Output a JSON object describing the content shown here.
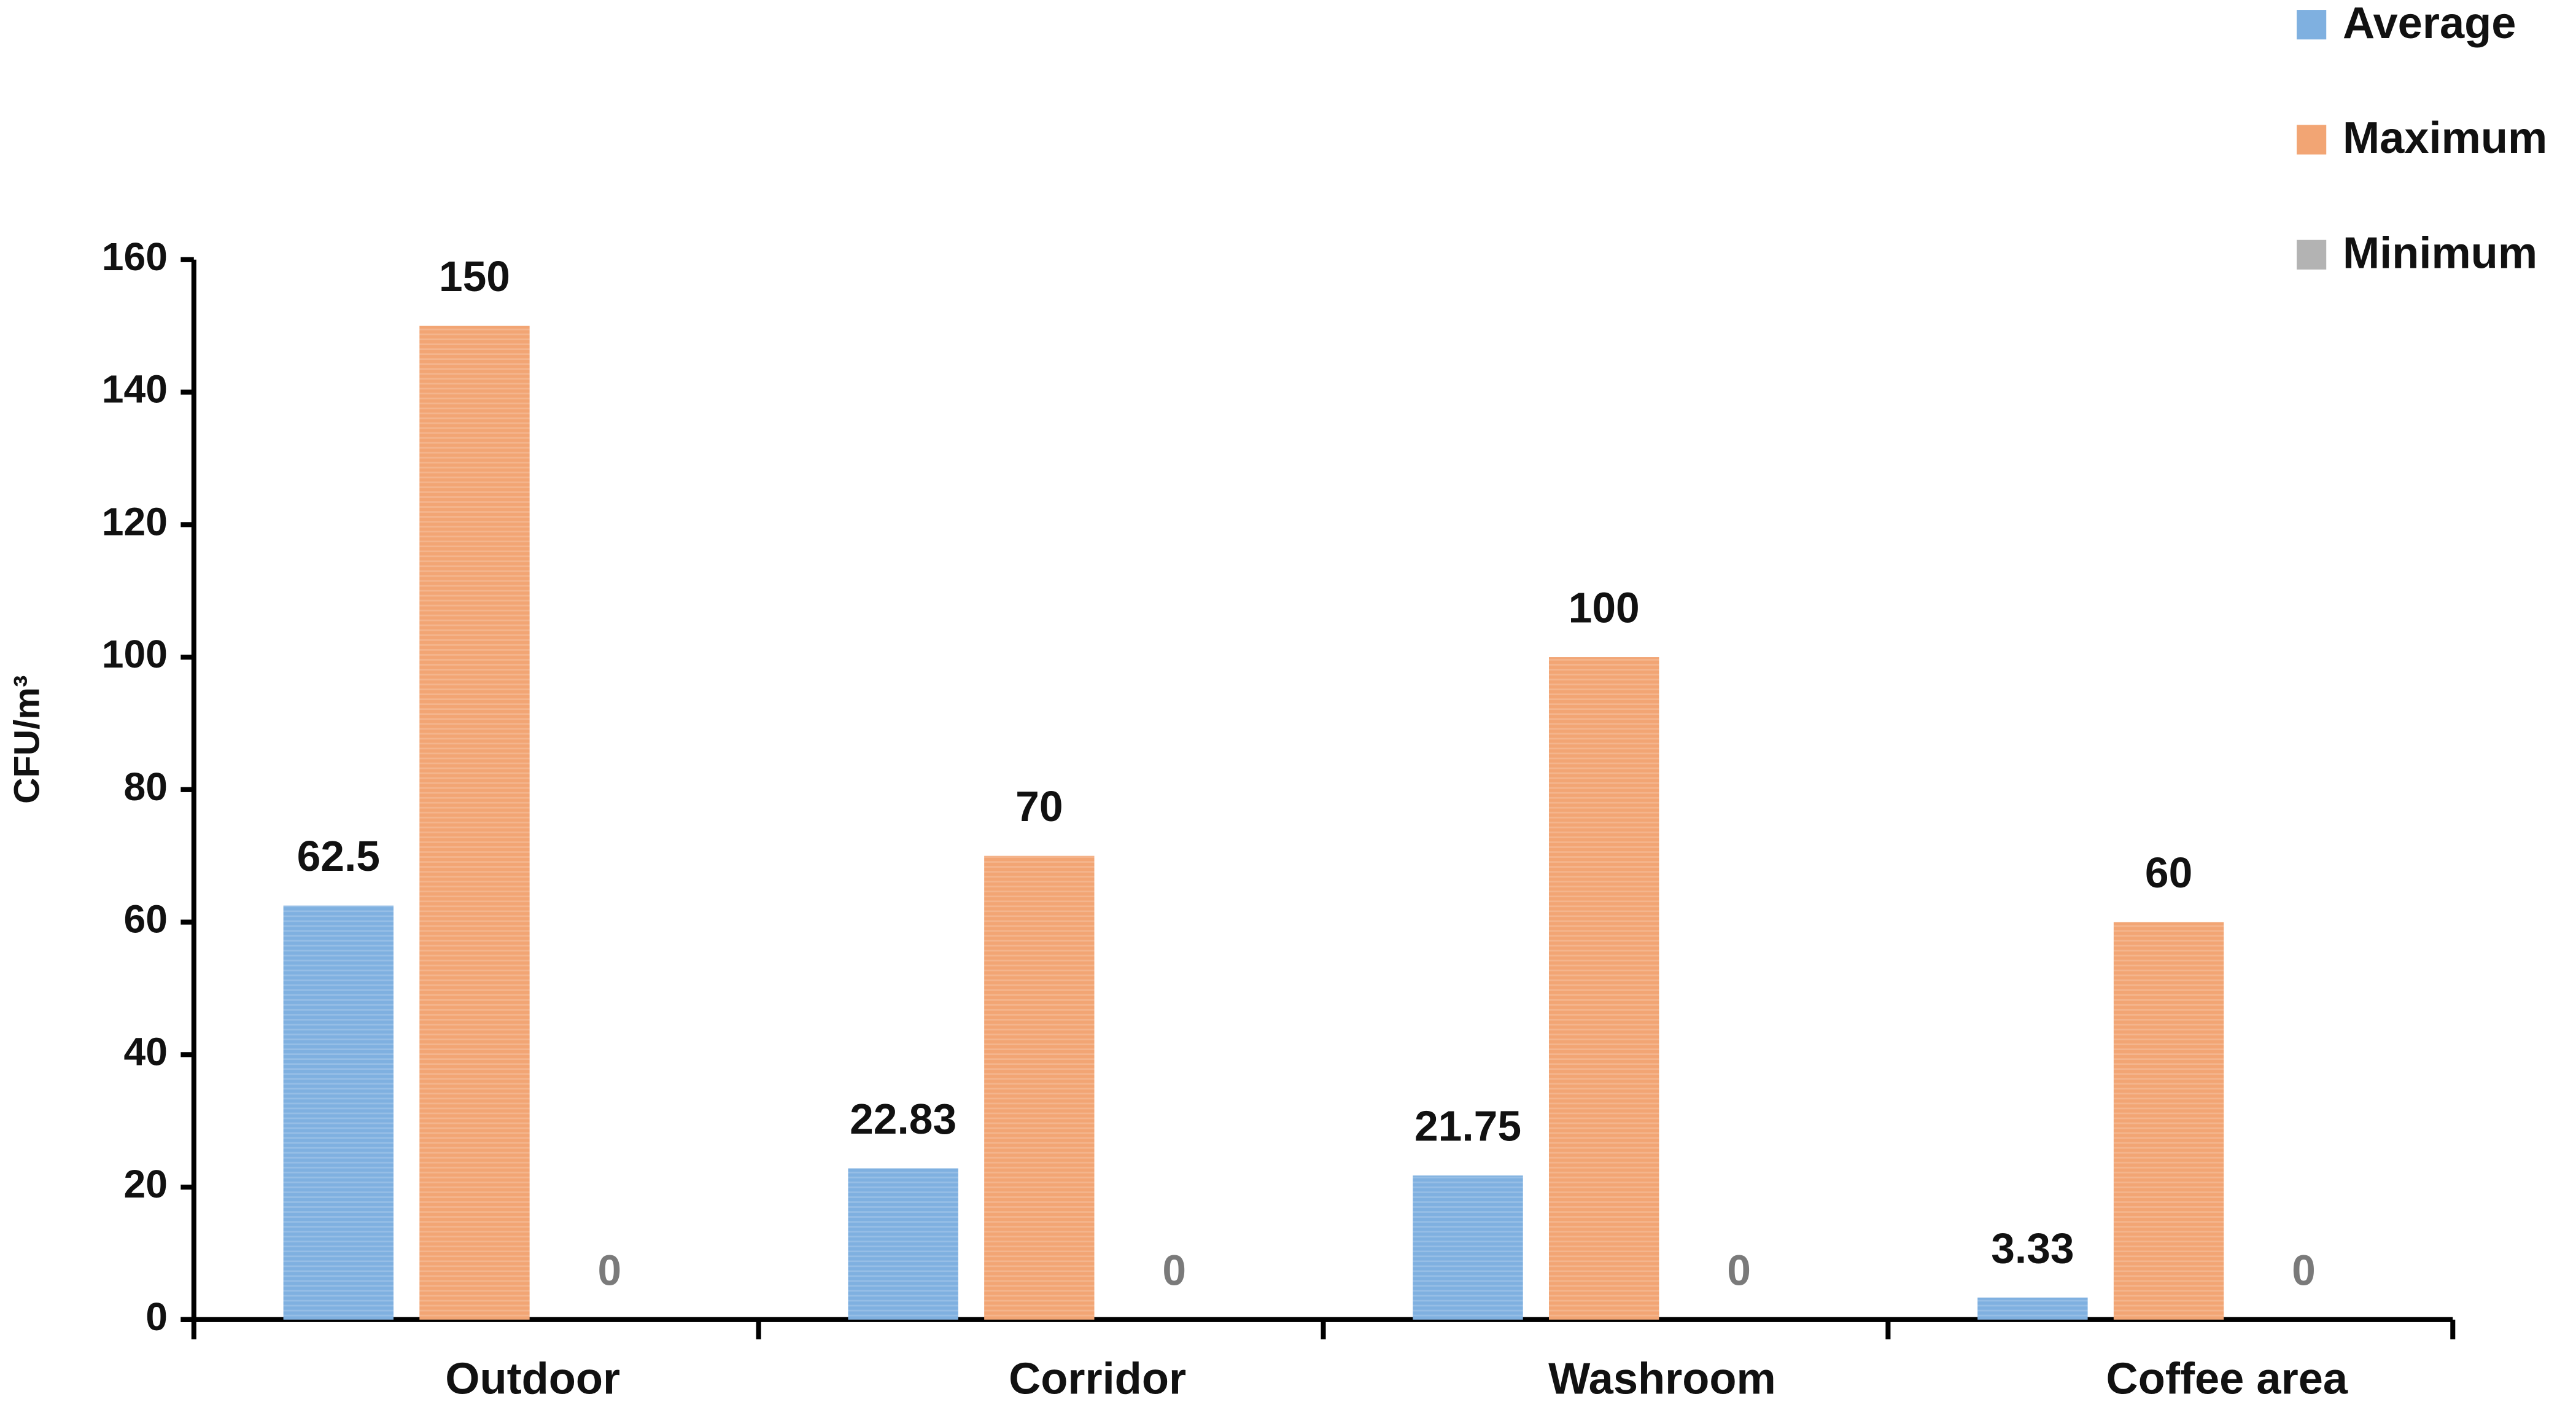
{
  "chart_data": {
    "type": "bar",
    "y_label": "CFU/m³",
    "categories": [
      "Outdoor",
      "Corridor",
      "Washroom",
      "Coffee area"
    ],
    "series": [
      {
        "name": "Average",
        "color": "#7fb0e0",
        "values": [
          62.5,
          22.83,
          21.75,
          3.33
        ]
      },
      {
        "name": "Maximum",
        "color": "#f2a574",
        "values": [
          150,
          70,
          100,
          60
        ]
      },
      {
        "name": "Minimum",
        "color": "#b3b3b3",
        "values": [
          0,
          0,
          0,
          0
        ]
      }
    ],
    "ylim": [
      0,
      160
    ],
    "yticks": [
      0,
      20,
      40,
      60,
      80,
      100,
      120,
      140,
      160
    ],
    "legend": "top-right"
  }
}
